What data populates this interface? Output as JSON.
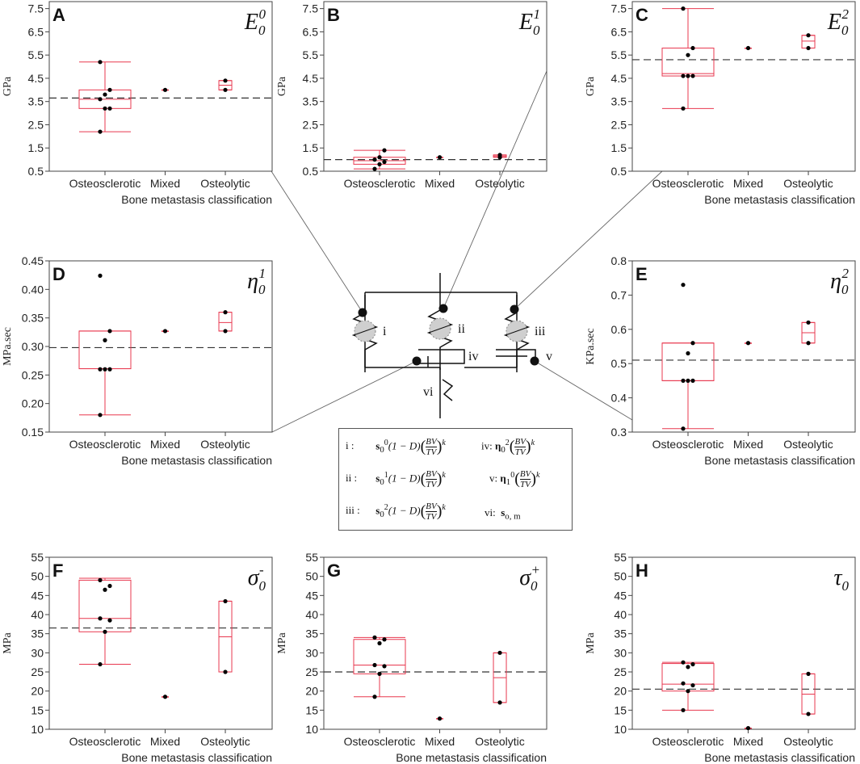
{
  "figure": {
    "category_labels": [
      "Osteosclerotic",
      "Mixed",
      "Osteolytic"
    ],
    "x_axis_label": "Bone metastasis classification",
    "colors": {
      "box": "#e8384f",
      "point": "#000000",
      "reference_line": "#333333",
      "axis": "#444444"
    }
  },
  "chart_data": [
    {
      "id": "A",
      "type": "box",
      "param_base": "E",
      "param_sub": "0",
      "param_sup": "0",
      "ylabel": "GPa",
      "xlabel": "Bone metastasis classification",
      "ylim": [
        0.5,
        7.8
      ],
      "yticks": [
        "0.5",
        "1.5",
        "2.5",
        "3.5",
        "4.5",
        "5.5",
        "6.5",
        "7.5"
      ],
      "reference": 3.65,
      "categories": [
        "Osteosclerotic",
        "Mixed",
        "Osteolytic"
      ],
      "groups": [
        {
          "min": 2.2,
          "q1": 3.2,
          "median": 3.6,
          "q3": 4.0,
          "max": 5.2,
          "points": [
            2.2,
            3.2,
            3.2,
            3.6,
            3.8,
            4.0,
            5.2
          ]
        },
        {
          "min": 4.0,
          "q1": 4.0,
          "median": 4.0,
          "q3": 4.0,
          "max": 4.0,
          "points": [
            4.0
          ]
        },
        {
          "min": 4.0,
          "q1": 4.0,
          "median": 4.2,
          "q3": 4.4,
          "max": 4.4,
          "points": [
            4.0,
            4.4
          ]
        }
      ]
    },
    {
      "id": "B",
      "type": "box",
      "param_base": "E",
      "param_sub": "0",
      "param_sup": "1",
      "ylabel": "GPa",
      "xlabel": "",
      "ylim": [
        0.5,
        7.8
      ],
      "yticks": [
        "0.5",
        "1.5",
        "2.5",
        "3.5",
        "4.5",
        "5.5",
        "6.5",
        "7.5"
      ],
      "reference": 1.0,
      "categories": [
        "Osteosclerotic",
        "Mixed",
        "Osteolytic"
      ],
      "groups": [
        {
          "min": 0.6,
          "q1": 0.8,
          "median": 0.95,
          "q3": 1.1,
          "max": 1.4,
          "points": [
            0.6,
            0.8,
            0.9,
            1.0,
            1.1,
            1.4
          ]
        },
        {
          "min": 1.1,
          "q1": 1.1,
          "median": 1.1,
          "q3": 1.1,
          "max": 1.1,
          "points": [
            1.1
          ]
        },
        {
          "min": 1.1,
          "q1": 1.1,
          "median": 1.15,
          "q3": 1.2,
          "max": 1.2,
          "points": [
            1.1,
            1.2
          ]
        }
      ]
    },
    {
      "id": "C",
      "type": "box",
      "param_base": "E",
      "param_sub": "0",
      "param_sup": "2",
      "ylabel": "GPa",
      "xlabel": "Bone metastasis classification",
      "ylim": [
        0.5,
        7.8
      ],
      "yticks": [
        "0.5",
        "1.5",
        "2.5",
        "3.5",
        "4.5",
        "5.5",
        "6.5",
        "7.5"
      ],
      "reference": 5.3,
      "categories": [
        "Osteosclerotic",
        "Mixed",
        "Osteolytic"
      ],
      "groups": [
        {
          "min": 3.2,
          "q1": 4.6,
          "median": 4.7,
          "q3": 5.8,
          "max": 7.5,
          "points": [
            3.2,
            4.6,
            4.6,
            4.6,
            5.5,
            5.8,
            7.5
          ]
        },
        {
          "min": 5.8,
          "q1": 5.8,
          "median": 5.8,
          "q3": 5.8,
          "max": 5.8,
          "points": [
            5.8
          ]
        },
        {
          "min": 5.8,
          "q1": 5.8,
          "median": 6.1,
          "q3": 6.35,
          "max": 6.35,
          "points": [
            5.8,
            6.35
          ]
        }
      ]
    },
    {
      "id": "D",
      "type": "box",
      "param_base": "η",
      "param_sub": "0",
      "param_sup": "1",
      "ylabel": "MPa.sec",
      "xlabel": "Bone metastasis classification",
      "ylim": [
        0.15,
        0.45
      ],
      "yticks": [
        "0.15",
        "0.20",
        "0.25",
        "0.30",
        "0.35",
        "0.40",
        "0.45"
      ],
      "reference": 0.298,
      "categories": [
        "Osteosclerotic",
        "Mixed",
        "Osteolytic"
      ],
      "groups": [
        {
          "min": 0.18,
          "q1": 0.261,
          "median": 0.261,
          "q3": 0.327,
          "max": 0.327,
          "points": [
            0.18,
            0.26,
            0.26,
            0.26,
            0.311,
            0.327,
            0.424
          ]
        },
        {
          "min": 0.327,
          "q1": 0.327,
          "median": 0.327,
          "q3": 0.327,
          "max": 0.327,
          "points": [
            0.327
          ]
        },
        {
          "min": 0.327,
          "q1": 0.327,
          "median": 0.342,
          "q3": 0.36,
          "max": 0.36,
          "points": [
            0.327,
            0.36
          ]
        }
      ]
    },
    {
      "id": "E",
      "type": "box",
      "param_base": "η",
      "param_sub": "0",
      "param_sup": "2",
      "ylabel": "KPa.sec",
      "xlabel": "Bone metastasis classification",
      "ylim": [
        0.3,
        0.8
      ],
      "yticks": [
        "0.3",
        "0.4",
        "0.5",
        "0.6",
        "0.7",
        "0.8"
      ],
      "reference": 0.51,
      "categories": [
        "Osteosclerotic",
        "Mixed",
        "Osteolytic"
      ],
      "groups": [
        {
          "min": 0.31,
          "q1": 0.45,
          "median": 0.45,
          "q3": 0.56,
          "max": 0.56,
          "points": [
            0.31,
            0.45,
            0.45,
            0.45,
            0.53,
            0.56,
            0.73
          ]
        },
        {
          "min": 0.56,
          "q1": 0.56,
          "median": 0.56,
          "q3": 0.56,
          "max": 0.56,
          "points": [
            0.56
          ]
        },
        {
          "min": 0.56,
          "q1": 0.56,
          "median": 0.59,
          "q3": 0.62,
          "max": 0.62,
          "points": [
            0.56,
            0.62
          ]
        }
      ]
    },
    {
      "id": "F",
      "type": "box",
      "param_base": "σ",
      "param_sub": "0",
      "param_sup": "-",
      "ylabel": "MPa",
      "xlabel": "Bone metastasis classification",
      "ylim": [
        10,
        55
      ],
      "yticks": [
        "10",
        "15",
        "20",
        "25",
        "30",
        "35",
        "40",
        "45",
        "50",
        "55"
      ],
      "reference": 36.5,
      "categories": [
        "Osteosclerotic",
        "Mixed",
        "Osteolytic"
      ],
      "groups": [
        {
          "min": 27,
          "q1": 35.5,
          "median": 39,
          "q3": 49,
          "max": 49.5,
          "points": [
            27,
            35.5,
            38.5,
            39,
            46.5,
            47.5,
            49
          ]
        },
        {
          "min": 18.5,
          "q1": 18.5,
          "median": 18.5,
          "q3": 18.5,
          "max": 18.5,
          "points": [
            18.5
          ]
        },
        {
          "min": 25,
          "q1": 25,
          "median": 34.2,
          "q3": 43.5,
          "max": 43.5,
          "points": [
            25,
            43.5
          ]
        }
      ]
    },
    {
      "id": "G",
      "type": "box",
      "param_base": "σ",
      "param_sub": "0",
      "param_sup": "+",
      "ylabel": "MPa",
      "xlabel": "Bone metastasis classification",
      "ylim": [
        10,
        55
      ],
      "yticks": [
        "10",
        "15",
        "20",
        "25",
        "30",
        "35",
        "40",
        "45",
        "50",
        "55"
      ],
      "reference": 25,
      "categories": [
        "Osteosclerotic",
        "Mixed",
        "Osteolytic"
      ],
      "groups": [
        {
          "min": 18.5,
          "q1": 24.5,
          "median": 26.8,
          "q3": 33.5,
          "max": 34,
          "points": [
            18.5,
            24.5,
            26.5,
            26.8,
            32.5,
            33.5,
            34
          ]
        },
        {
          "min": 12.8,
          "q1": 12.8,
          "median": 12.8,
          "q3": 12.8,
          "max": 12.8,
          "points": [
            12.8
          ]
        },
        {
          "min": 17,
          "q1": 17,
          "median": 23.5,
          "q3": 30,
          "max": 30,
          "points": [
            17,
            30
          ]
        }
      ]
    },
    {
      "id": "H",
      "type": "box",
      "param_base": "τ",
      "param_sub": "0",
      "param_sup": "",
      "ylabel": "MPa",
      "xlabel": "Bone metastasis classification",
      "ylim": [
        10,
        55
      ],
      "yticks": [
        "10",
        "15",
        "20",
        "25",
        "30",
        "35",
        "40",
        "45",
        "50",
        "55"
      ],
      "reference": 20.5,
      "categories": [
        "Osteosclerotic",
        "Mixed",
        "Osteolytic"
      ],
      "groups": [
        {
          "min": 15,
          "q1": 20,
          "median": 21.8,
          "q3": 27.2,
          "max": 27.5,
          "points": [
            15,
            20,
            21.5,
            22,
            26.3,
            27,
            27.5
          ]
        },
        {
          "min": 10.3,
          "q1": 10.3,
          "median": 10.3,
          "q3": 10.3,
          "max": 10.3,
          "points": [
            10.3
          ]
        },
        {
          "min": 14,
          "q1": 14,
          "median": 19.2,
          "q3": 24.5,
          "max": 24.5,
          "points": [
            14,
            24.5
          ]
        }
      ]
    }
  ],
  "diagram": {
    "roman_labels": [
      "i",
      "ii",
      "iii",
      "iv",
      "v",
      "vi"
    ]
  },
  "formulas": {
    "i_label": "i  :",
    "ii_label": "ii  :",
    "iii_label": "iii :",
    "iv_label": "iv:",
    "v_label": "v:",
    "vi_label": "vi:",
    "s_sym": "s",
    "eta_sym": "η",
    "damage_term": "(1 − D)",
    "bv": "BV",
    "tv": "TV",
    "k": "k",
    "vi_tail": "o, m"
  }
}
